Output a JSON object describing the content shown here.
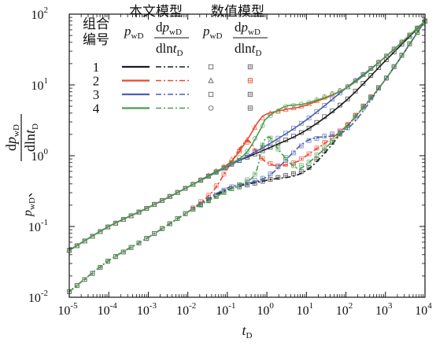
{
  "chart_data": {
    "type": "line",
    "xscale": "log",
    "yscale": "log",
    "xlim": [
      1e-05,
      10000
    ],
    "ylim": [
      0.01,
      100
    ],
    "xlabel": {
      "main": "t",
      "sub": "D"
    },
    "ylabel": {
      "line1": {
        "main": "p",
        "sub": "wD",
        "suffix": "、"
      },
      "frac_num": {
        "prefix": "d",
        "main": "p",
        "sub": "wD"
      },
      "frac_den": {
        "prefix": "dln",
        "main": "t",
        "sub": "D"
      }
    },
    "xticks": [
      {
        "base": "10",
        "exp": "-5"
      },
      {
        "base": "10",
        "exp": "-4"
      },
      {
        "base": "10",
        "exp": "-3"
      },
      {
        "base": "10",
        "exp": "-2"
      },
      {
        "base": "10",
        "exp": "-1"
      },
      {
        "base": "10",
        "exp": "0"
      },
      {
        "base": "10",
        "exp": "1"
      },
      {
        "base": "10",
        "exp": "2"
      },
      {
        "base": "10",
        "exp": "3"
      },
      {
        "base": "10",
        "exp": "4"
      }
    ],
    "yticks": [
      {
        "base": "10",
        "exp": "-2"
      },
      {
        "base": "10",
        "exp": "-1"
      },
      {
        "base": "10",
        "exp": "0"
      },
      {
        "base": "10",
        "exp": "1"
      },
      {
        "base": "10",
        "exp": "2"
      }
    ],
    "legend": {
      "position": "top-left",
      "group_header_line1": "组合",
      "group_header_line2": "编号",
      "model_header": "本文模型",
      "numeric_header": "数值模型",
      "col_p": {
        "main": "p",
        "sub": "wD"
      },
      "col_dp_num": {
        "prefix": "d",
        "main": "p",
        "sub": "wD"
      },
      "col_dp_den": {
        "prefix": "dln",
        "main": "t",
        "sub": "D"
      },
      "rows": [
        {
          "id": "1",
          "color": "#1a1a1a"
        },
        {
          "id": "2",
          "color": "#e8492d"
        },
        {
          "id": "3",
          "color": "#4a5fb0"
        },
        {
          "id": "4",
          "color": "#4b9e4b"
        }
      ]
    },
    "series": [
      {
        "name": "1",
        "kind": "pressure",
        "color": "#1a1a1a",
        "x": [
          1e-05,
          0.0001,
          0.001,
          0.01,
          0.1,
          1,
          10,
          100,
          1000,
          10000
        ],
        "y": [
          0.046,
          0.1,
          0.185,
          0.36,
          0.72,
          1.25,
          2.3,
          6.0,
          22,
          80
        ]
      },
      {
        "name": "1",
        "kind": "derivative",
        "color": "#1a1a1a",
        "x": [
          1e-05,
          0.0001,
          0.001,
          0.01,
          0.1,
          1,
          10,
          100,
          1000,
          10000
        ],
        "y": [
          0.012,
          0.033,
          0.07,
          0.16,
          0.33,
          0.45,
          0.62,
          2.5,
          12,
          80
        ]
      },
      {
        "name": "2",
        "kind": "pressure",
        "color": "#e8492d",
        "x": [
          1e-05,
          0.0001,
          0.001,
          0.01,
          0.1,
          0.3,
          0.6,
          1,
          3,
          10,
          100,
          1000,
          10000
        ],
        "y": [
          0.046,
          0.1,
          0.185,
          0.36,
          0.75,
          1.6,
          3.0,
          3.9,
          4.5,
          5.2,
          9,
          25,
          80
        ]
      },
      {
        "name": "2",
        "kind": "derivative",
        "color": "#e8492d",
        "x": [
          1e-05,
          0.0001,
          0.001,
          0.01,
          0.04,
          0.1,
          0.3,
          0.6,
          1,
          2,
          5,
          10,
          100,
          1000,
          10000
        ],
        "y": [
          0.012,
          0.033,
          0.07,
          0.16,
          0.3,
          0.65,
          1.6,
          1.05,
          0.8,
          0.72,
          0.8,
          1.0,
          2.6,
          12,
          80
        ]
      },
      {
        "name": "3",
        "kind": "pressure",
        "color": "#4a5fb0",
        "x": [
          1e-05,
          0.0001,
          0.001,
          0.01,
          0.1,
          1,
          10,
          100,
          1000,
          10000
        ],
        "y": [
          0.046,
          0.1,
          0.185,
          0.36,
          0.7,
          1.4,
          3.2,
          9.0,
          25,
          80
        ]
      },
      {
        "name": "3",
        "kind": "derivative",
        "color": "#4a5fb0",
        "x": [
          1e-05,
          0.0001,
          0.001,
          0.01,
          0.1,
          1,
          10,
          100,
          1000,
          10000
        ],
        "y": [
          0.012,
          0.033,
          0.07,
          0.16,
          0.35,
          0.5,
          1.6,
          2.3,
          12,
          80
        ]
      },
      {
        "name": "4",
        "kind": "pressure",
        "color": "#4b9e4b",
        "x": [
          1e-05,
          0.0001,
          0.001,
          0.01,
          0.1,
          0.3,
          0.7,
          1,
          3,
          10,
          100,
          1000,
          10000
        ],
        "y": [
          0.046,
          0.1,
          0.185,
          0.36,
          0.72,
          1.1,
          2.4,
          3.4,
          5.0,
          5.5,
          9,
          25,
          80
        ]
      },
      {
        "name": "4",
        "kind": "derivative",
        "color": "#4b9e4b",
        "x": [
          1e-05,
          0.0001,
          0.001,
          0.01,
          0.1,
          0.2,
          0.5,
          0.8,
          1.2,
          2,
          5,
          10,
          100,
          1000,
          10000
        ],
        "y": [
          0.012,
          0.033,
          0.07,
          0.16,
          0.32,
          0.38,
          0.55,
          1.5,
          1.8,
          1.2,
          0.7,
          0.75,
          2.5,
          12,
          80
        ]
      }
    ]
  }
}
